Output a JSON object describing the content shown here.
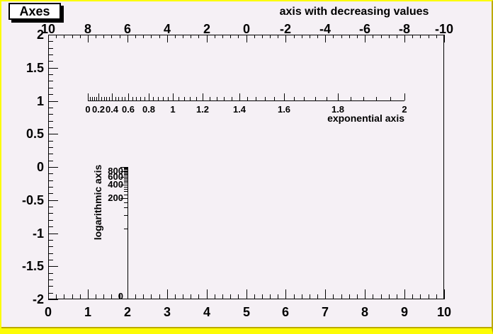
{
  "canvas": {
    "title": "Axes"
  },
  "colors": {
    "background": "#f5f0f5",
    "border_yellow": "#fcfc04",
    "border_olive": "#bcaa00",
    "ink": "#000000",
    "title_box_fill": "#ffffff"
  },
  "chart_data": {
    "type": "axes",
    "title": "Axes",
    "series": [],
    "grid": false,
    "frame": {
      "xmin": 0,
      "xmax": 10,
      "ymin": -2,
      "ymax": 2
    },
    "bottom_axis": {
      "major_values": [
        0,
        1,
        2,
        3,
        4,
        5,
        6,
        7,
        8,
        9,
        10
      ],
      "tick_labels": [
        "0",
        "1",
        "2",
        "3",
        "4",
        "5",
        "6",
        "7",
        "8",
        "9",
        "10"
      ],
      "minor_step": 0.2
    },
    "left_axis": {
      "major_values": [
        -2,
        -1.5,
        -1,
        -0.5,
        0,
        0.5,
        1,
        1.5,
        2
      ],
      "tick_labels": [
        "-2",
        "-1.5",
        "-1",
        "-0.5",
        "0",
        "0.5",
        "1",
        "1.5",
        "2"
      ],
      "minor_step": 0.1
    },
    "top_axis": {
      "title": "axis with decreasing values",
      "direction": "decreasing",
      "major_values": [
        10,
        8,
        6,
        4,
        2,
        0,
        -2,
        -4,
        -6,
        -8,
        -10
      ],
      "tick_labels": [
        "10",
        "8",
        "6",
        "4",
        "2",
        "0",
        "-2",
        "-4",
        "-6",
        "-8",
        "-10"
      ],
      "minor_per_major": 4
    },
    "exponential_axis": {
      "title": "exponential axis",
      "mapping": "exp",
      "wmin": 0,
      "wmax": 2,
      "x_start_user": 1,
      "x_end_user": 9,
      "y_user": 1,
      "label_values": [
        0,
        0.2,
        0.4,
        0.6,
        0.8,
        1,
        1.2,
        1.4,
        1.6,
        1.8,
        2
      ],
      "tick_labels": [
        "0",
        "0.2",
        "0.4",
        "0.6",
        "0.8",
        "1",
        "1.2",
        "1.4",
        "1.6",
        "1.8",
        "2"
      ],
      "minor_step": 0.04
    },
    "log_axis": {
      "title": "logarithmic axis",
      "mapping": "log10",
      "wmin": 1,
      "wmax": 1000,
      "x_user": 2,
      "y_start_user": -2,
      "y_end_user": 0,
      "minor_step": 40,
      "major_values": [
        200,
        400,
        600,
        800,
        1000
      ],
      "labels": [
        {
          "value": 800,
          "text": "800"
        },
        {
          "value": 600,
          "text": "600"
        },
        {
          "value": 400,
          "text": "400"
        },
        {
          "value": 200,
          "text": "200"
        },
        {
          "value": 1,
          "text": "0"
        }
      ]
    }
  }
}
